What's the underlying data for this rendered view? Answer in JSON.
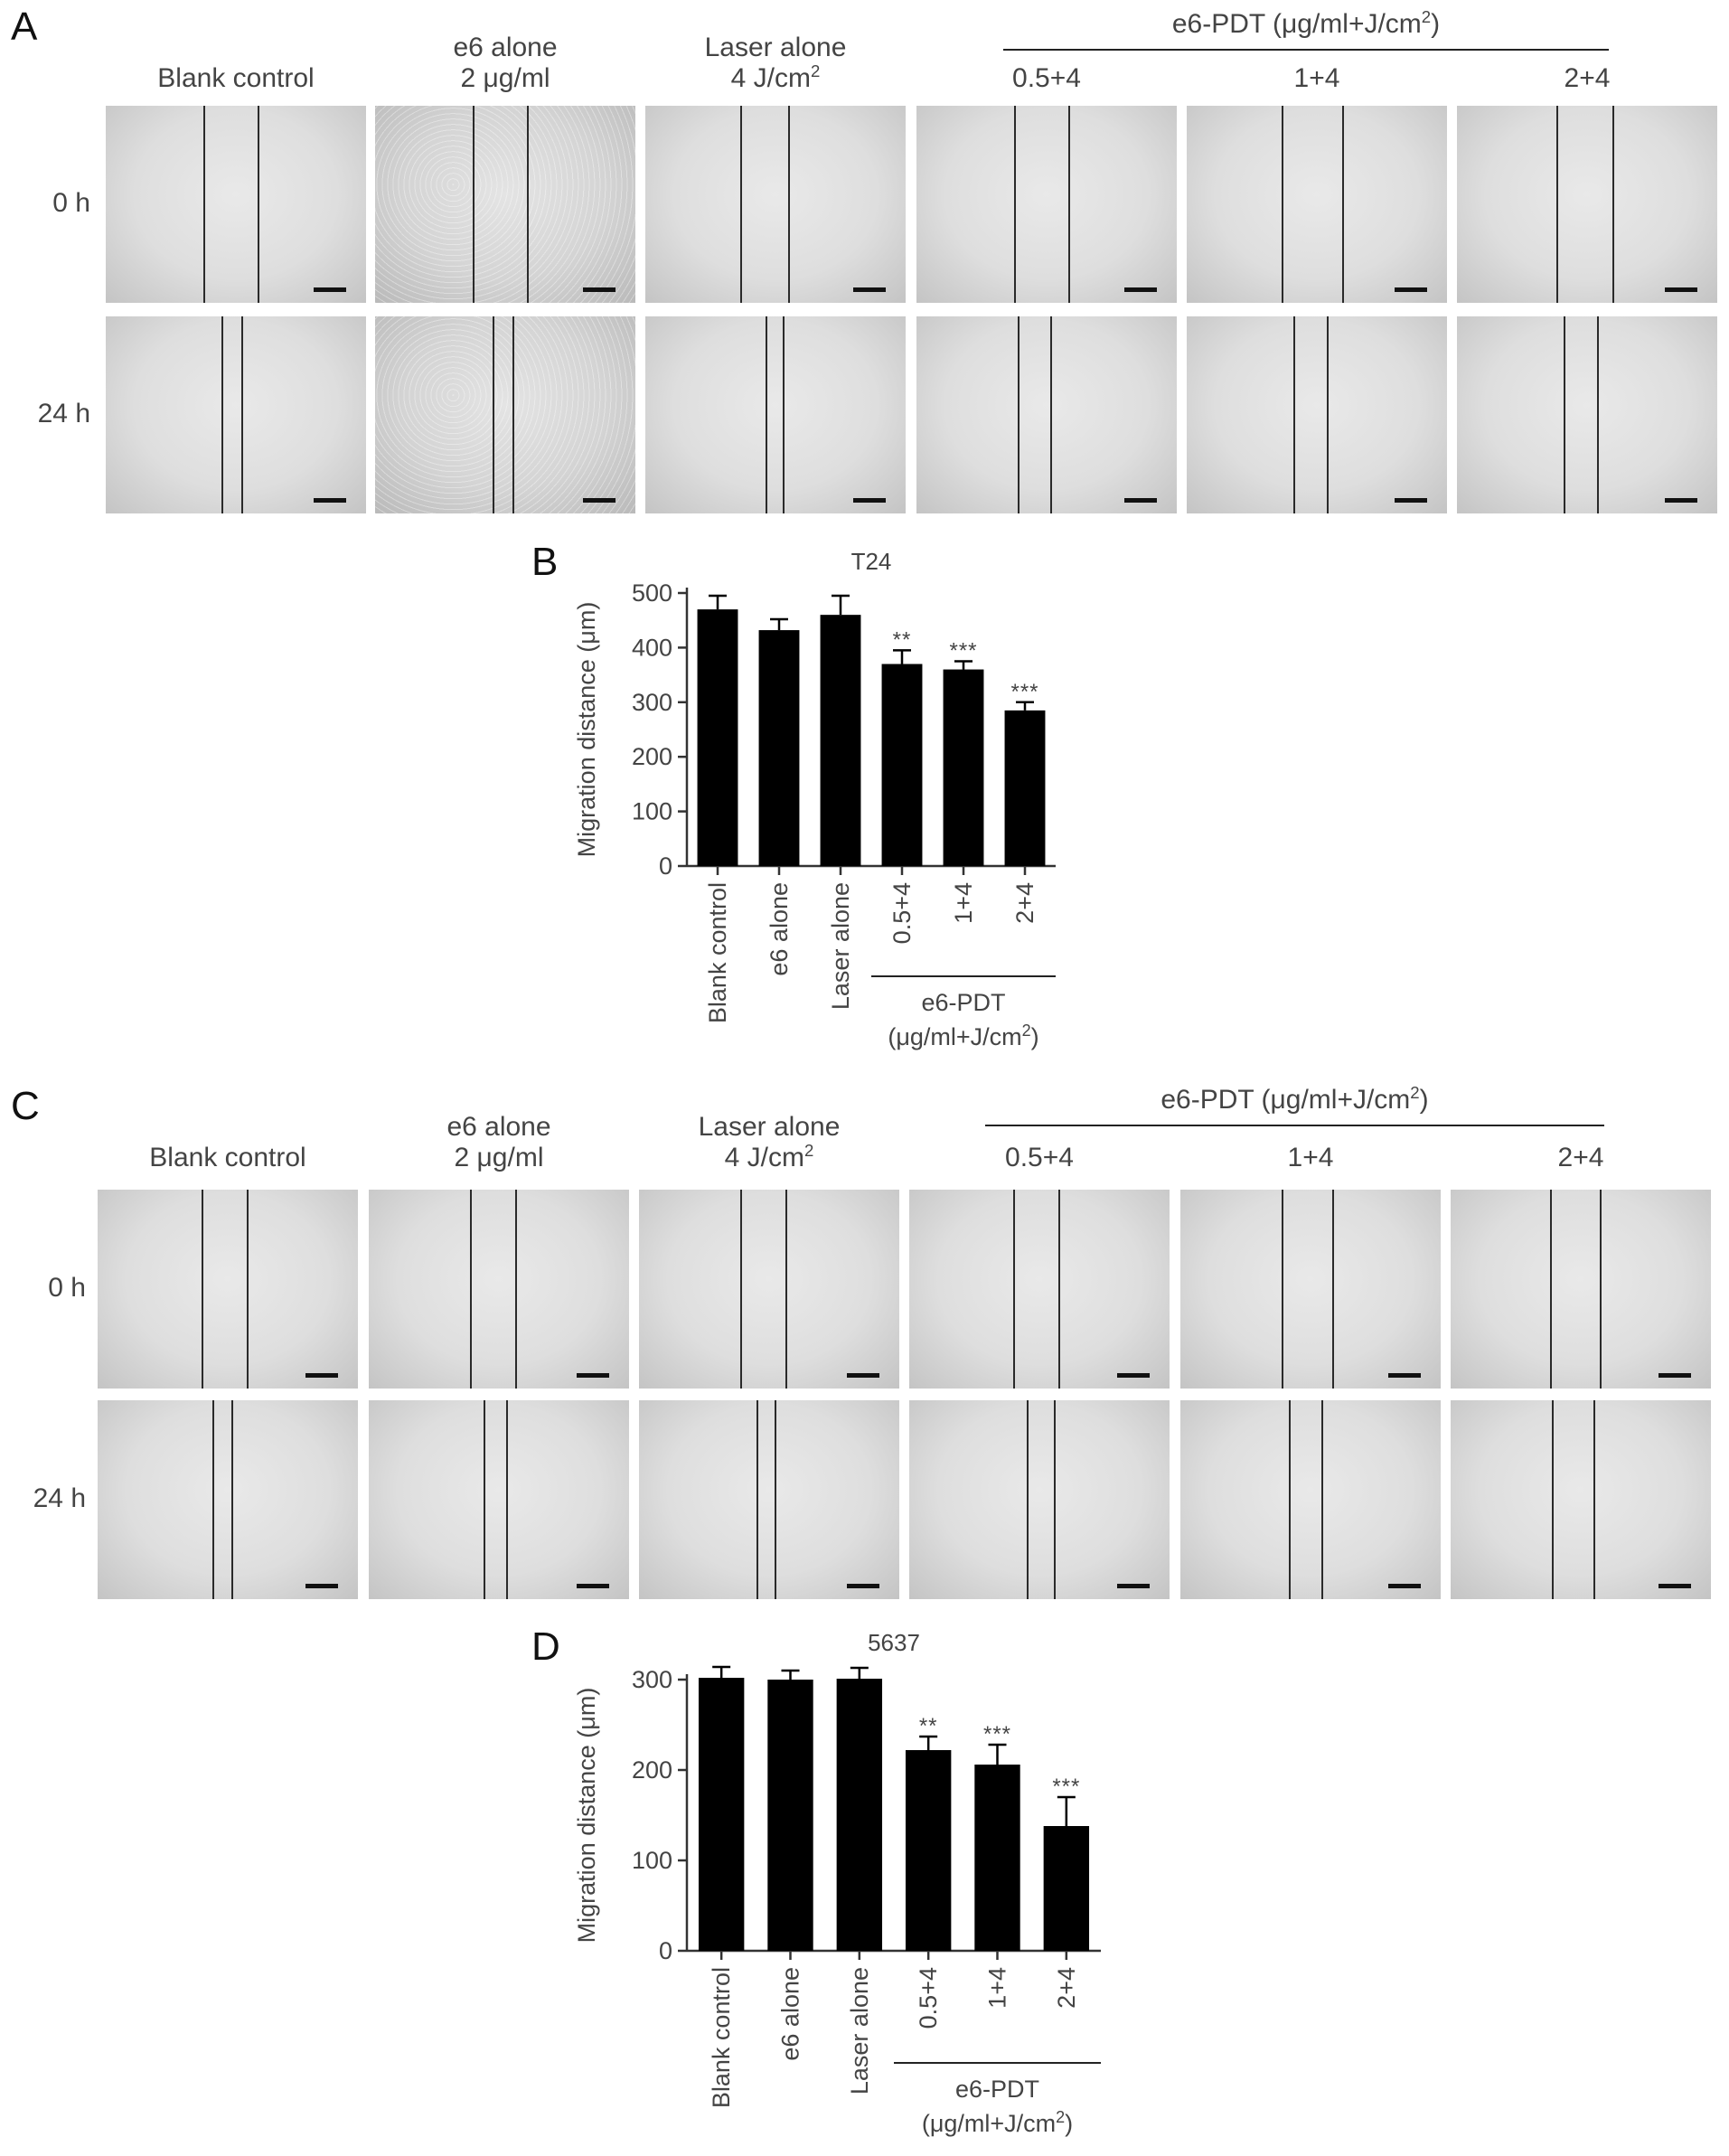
{
  "panel_letters": {
    "a": "A",
    "b": "B",
    "c": "C",
    "d": "D"
  },
  "panel_a": {
    "columns": [
      {
        "line1": "",
        "line2": "Blank control"
      },
      {
        "line1": "e6 alone",
        "line2": "2 μg/ml"
      },
      {
        "line1": "Laser alone",
        "line2": "4 J/cm",
        "line2_sup": "2"
      },
      {
        "line1": "",
        "line2": "0.5+4"
      },
      {
        "line1": "",
        "line2": "1+4"
      },
      {
        "line1": "",
        "line2": "2+4"
      }
    ],
    "group_header": {
      "text": "e6-PDT (μg/ml+J/cm",
      "sup": "2",
      "close": ")"
    },
    "rows": [
      "0 h",
      "24 h"
    ]
  },
  "panel_c": {
    "columns": [
      {
        "line1": "",
        "line2": "Blank control"
      },
      {
        "line1": "e6 alone",
        "line2": "2 μg/ml"
      },
      {
        "line1": "Laser alone",
        "line2": "4 J/cm",
        "line2_sup": "2"
      },
      {
        "line1": "",
        "line2": "0.5+4"
      },
      {
        "line1": "",
        "line2": "1+4"
      },
      {
        "line1": "",
        "line2": "2+4"
      }
    ],
    "group_header": {
      "text": "e6-PDT (μg/ml+J/cm",
      "sup": "2",
      "close": ")"
    },
    "rows": [
      "0 h",
      "24 h"
    ]
  },
  "chart_data": [
    {
      "panel": "B",
      "type": "bar",
      "title": "T24",
      "ylabel": "Migration distance (μm)",
      "categories": [
        "Blank control",
        "e6 alone",
        "Laser alone",
        "0.5+4",
        "1+4",
        "2+4"
      ],
      "values": [
        470,
        432,
        460,
        370,
        360,
        285
      ],
      "errors": [
        25,
        20,
        35,
        25,
        15,
        15
      ],
      "significance": [
        "",
        "",
        "",
        "**",
        "***",
        "***"
      ],
      "ylim": [
        0,
        500
      ],
      "yticks": [
        0,
        100,
        200,
        300,
        400,
        500
      ],
      "group_label": {
        "line1": "e6-PDT",
        "line2": "(μg/ml+J/cm",
        "sup": "2",
        "close": ")"
      },
      "bar_color": "#000000"
    },
    {
      "panel": "D",
      "type": "bar",
      "title": "5637",
      "ylabel": "Migration distance (μm)",
      "categories": [
        "Blank control",
        "e6 alone",
        "Laser alone",
        "0.5+4",
        "1+4",
        "2+4"
      ],
      "values": [
        302,
        300,
        301,
        222,
        206,
        138
      ],
      "errors": [
        12,
        10,
        12,
        15,
        22,
        32
      ],
      "significance": [
        "",
        "",
        "",
        "**",
        "***",
        "***"
      ],
      "ylim": [
        0,
        300
      ],
      "yticks": [
        0,
        100,
        200,
        300
      ],
      "group_label": {
        "line1": "e6-PDT",
        "line2": "(μg/ml+J/cm",
        "sup": "2",
        "close": ")"
      },
      "bar_color": "#000000"
    }
  ]
}
